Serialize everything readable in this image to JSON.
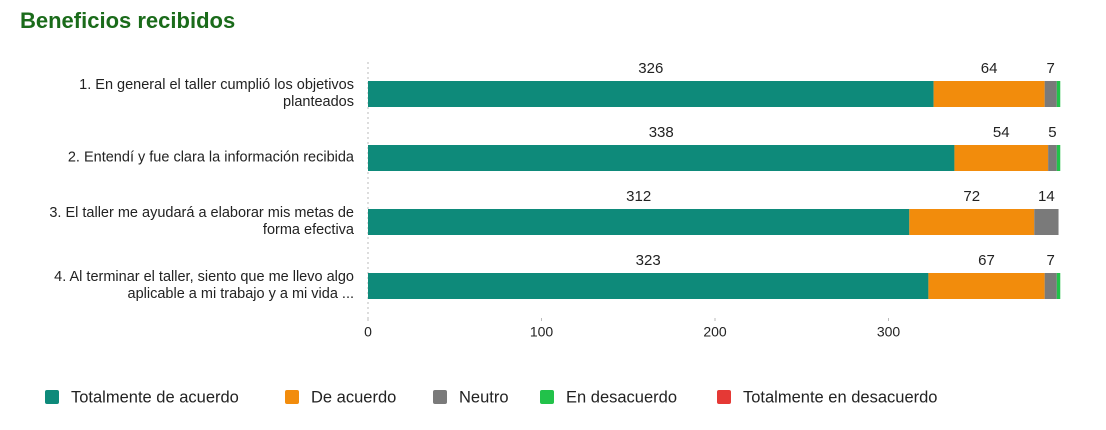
{
  "chart_data": {
    "type": "stacked-horizontal-bar",
    "title": "Beneficios recibidos",
    "categories": [
      "1. En general el taller cumplió los objetivos planteados",
      "2. Entendí y fue clara la información recibida",
      "3. El taller me ayudará a elaborar mis metas de forma efectiva",
      "4. Al terminar el taller, siento que me llevo algo aplicable a mi trabajo y a mi vida ..."
    ],
    "series": [
      {
        "name": "Totalmente de acuerdo",
        "color": "#0e8a7a",
        "values": [
          326,
          338,
          312,
          323
        ],
        "show_labels": true
      },
      {
        "name": "De acuerdo",
        "color": "#f28c0c",
        "values": [
          64,
          54,
          72,
          67
        ],
        "show_labels": true
      },
      {
        "name": "Neutro",
        "color": "#7a7a7a",
        "values": [
          7,
          5,
          14,
          7
        ],
        "show_labels": true
      },
      {
        "name": "En desacuerdo",
        "color": "#22c24a",
        "values": [
          2,
          2,
          0,
          2
        ],
        "show_labels": false
      },
      {
        "name": "Totalmente en desacuerdo",
        "color": "#e53935",
        "values": [
          0,
          0,
          0,
          0
        ],
        "show_labels": false
      }
    ],
    "xlim": [
      0,
      400
    ],
    "xticks": [
      0,
      100,
      200,
      300
    ],
    "legend": "bottom"
  }
}
